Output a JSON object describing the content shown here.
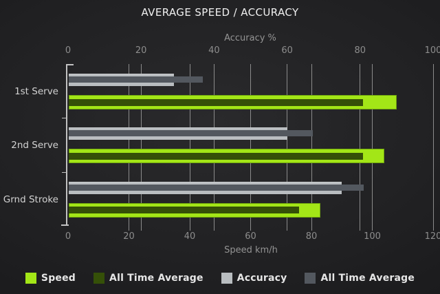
{
  "title": "AVERAGE SPEED / ACCURACY",
  "chart_data": {
    "type": "bar",
    "orientation": "horizontal",
    "title": "AVERAGE SPEED / ACCURACY",
    "categories": [
      "1st Serve",
      "2nd Serve",
      "Grnd Stroke"
    ],
    "series": [
      {
        "name": "Speed",
        "axis": "speed",
        "color": "#a3e617",
        "values": [
          108,
          104,
          83
        ]
      },
      {
        "name": "All Time Average",
        "axis": "speed",
        "color": "#355008",
        "values": [
          97,
          97,
          76
        ]
      },
      {
        "name": "Accuracy",
        "axis": "accuracy",
        "color": "#b9bdc0",
        "values": [
          29,
          60,
          75
        ]
      },
      {
        "name": "All Time Average",
        "axis": "accuracy",
        "color": "#53585f",
        "values": [
          37,
          67,
          81
        ]
      }
    ],
    "axes": {
      "top": {
        "label": "Accuracy %",
        "min": 0,
        "max": 100,
        "ticks": [
          0,
          20,
          40,
          60,
          80,
          100
        ]
      },
      "bottom": {
        "label": "Speed km/h",
        "min": 0,
        "max": 120,
        "ticks": [
          0,
          20,
          40,
          60,
          80,
          100,
          120
        ]
      }
    },
    "grid": true,
    "legend_position": "bottom"
  },
  "colors": {
    "background_center": "#2a2a2c",
    "background_edge": "#121214",
    "gridline": "#8c8c8c",
    "axis_line": "#c2c2c2",
    "title_text": "#f0f0f0",
    "axis_text": "#8d8d8d",
    "category_text": "#d3d3d3",
    "legend_text": "#e6e6e6"
  }
}
